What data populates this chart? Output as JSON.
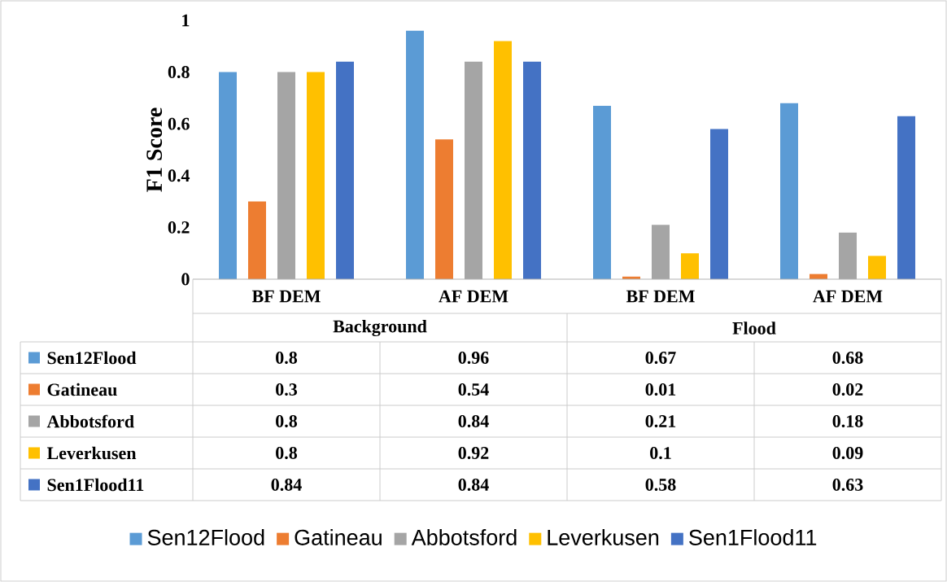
{
  "chart_data": {
    "type": "bar",
    "ylabel": "F1 Score",
    "categories": [
      "BF DEM",
      "AF DEM",
      "BF DEM",
      "AF DEM"
    ],
    "annotations": [
      "Background",
      "Flood"
    ],
    "series": [
      {
        "name": "Sen12Flood",
        "color": "#5b9bd5",
        "values": [
          0.8,
          0.96,
          0.67,
          0.68
        ]
      },
      {
        "name": "Gatineau",
        "color": "#ed7d31",
        "values": [
          0.3,
          0.54,
          0.01,
          0.02
        ]
      },
      {
        "name": "Abbotsford",
        "color": "#a5a5a5",
        "values": [
          0.8,
          0.84,
          0.21,
          0.18
        ]
      },
      {
        "name": "Leverkusen",
        "color": "#ffc000",
        "values": [
          0.8,
          0.92,
          0.1,
          0.09
        ]
      },
      {
        "name": "Sen1Flood11",
        "color": "#4472c4",
        "values": [
          0.84,
          0.84,
          0.58,
          0.63
        ]
      }
    ],
    "ylim": [
      0,
      1
    ],
    "yticks": [
      0,
      0.2,
      0.4,
      0.6,
      0.8,
      1
    ],
    "data_labels": true,
    "legend": "bottom",
    "grid": false
  }
}
